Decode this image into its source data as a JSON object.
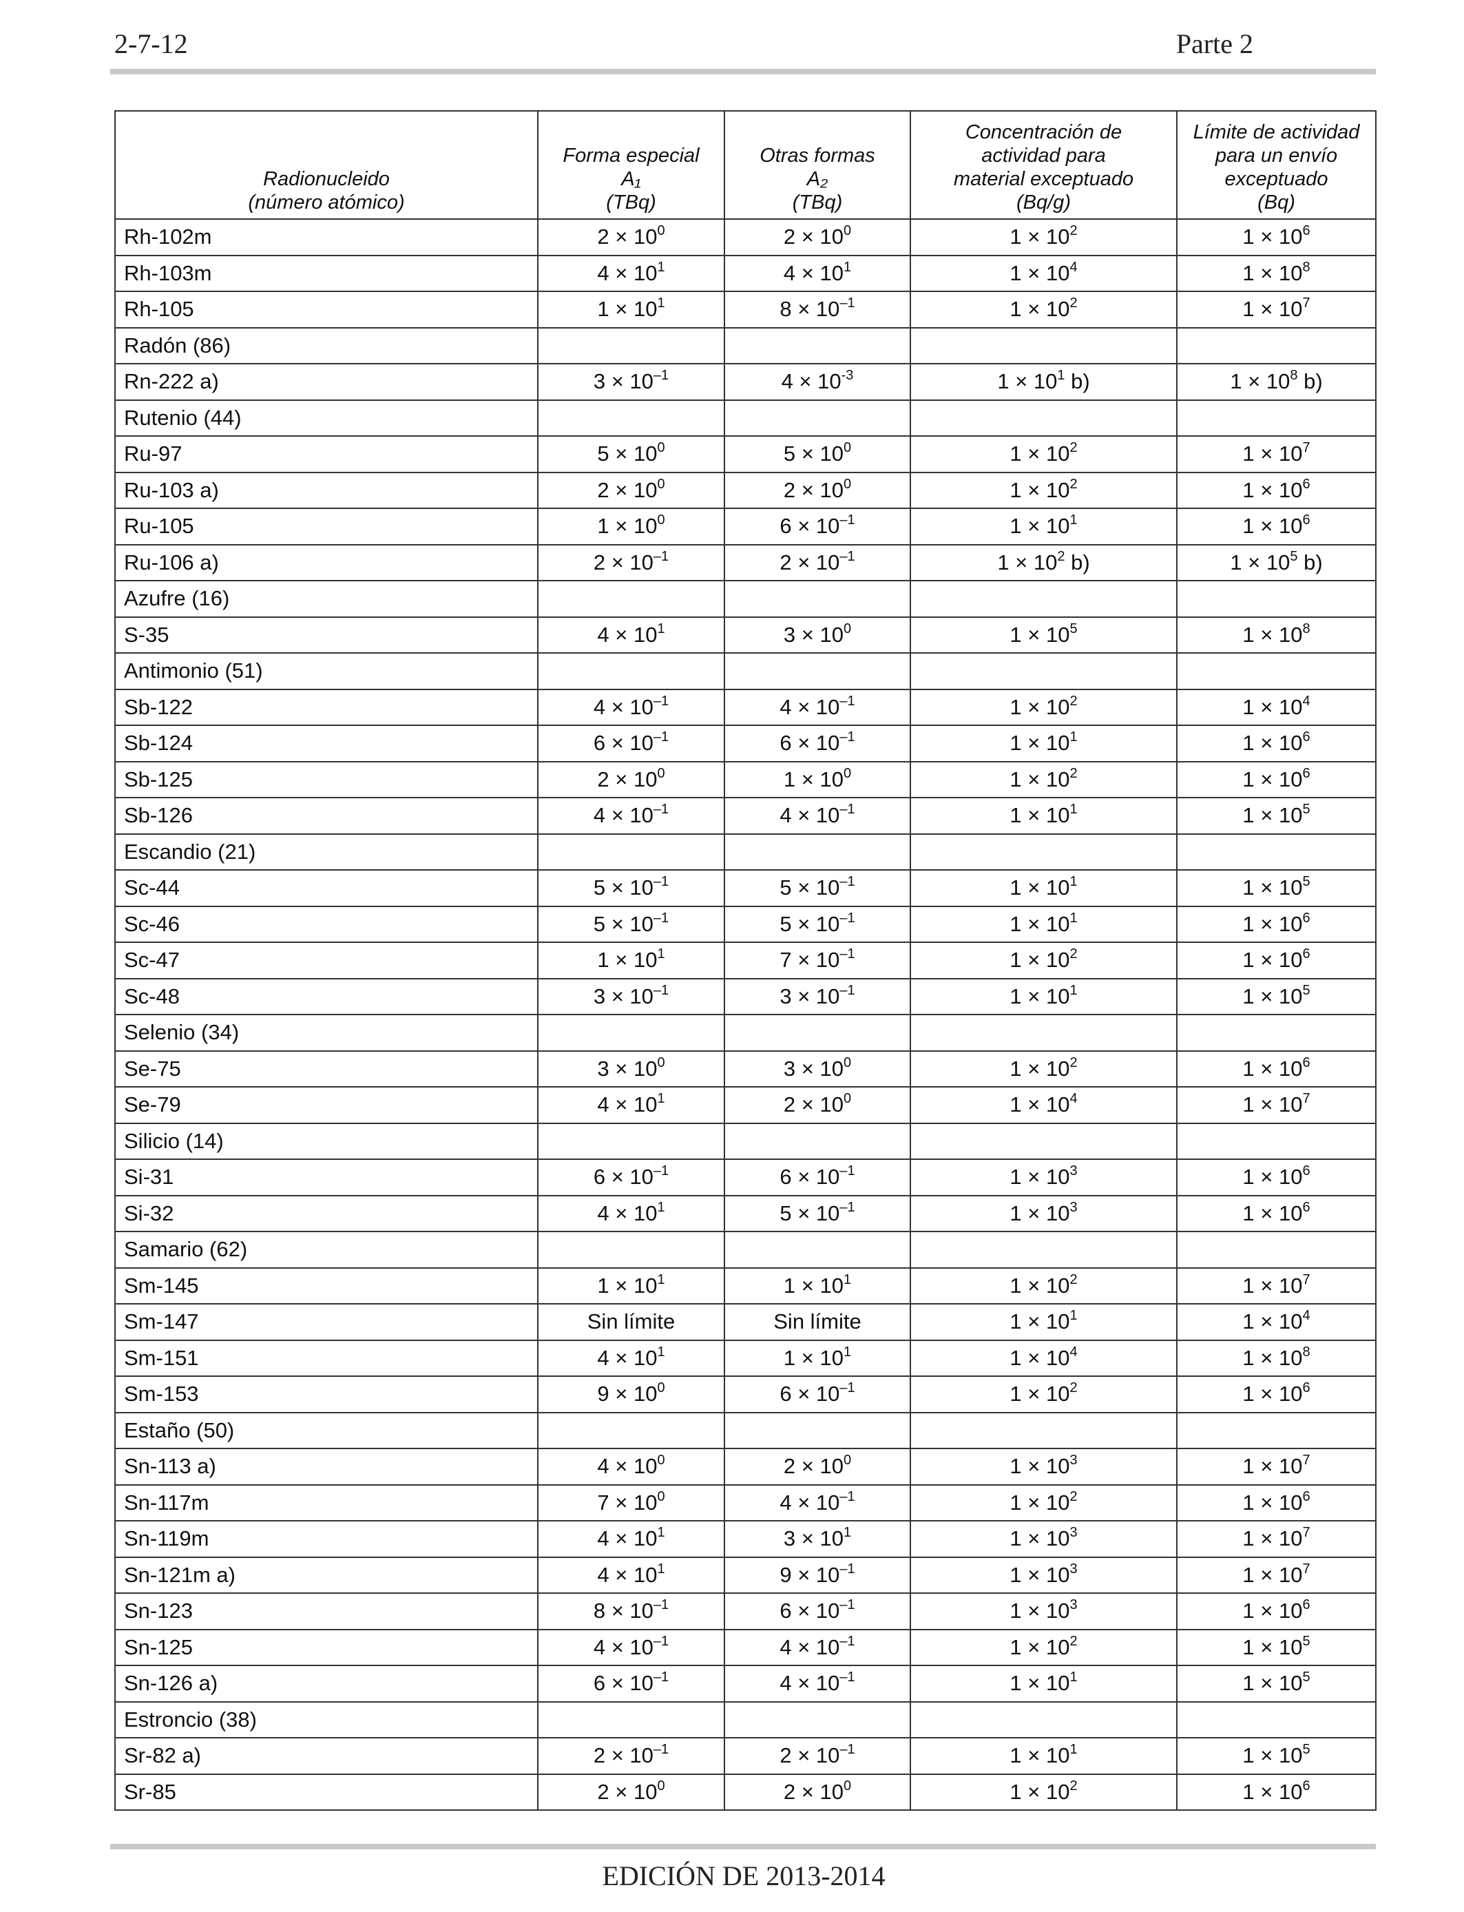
{
  "header": {
    "left": "2-7-12",
    "right": "Parte 2"
  },
  "footer": {
    "text": "EDICIÓN DE 2013-2014"
  },
  "table": {
    "columns": [
      {
        "lines": [
          "Radionucleido",
          "(número atómico)"
        ]
      },
      {
        "lines": [
          "Forma especial",
          "A₁",
          "(TBq)"
        ]
      },
      {
        "lines": [
          "Otras formas",
          "A₂",
          "(TBq)"
        ]
      },
      {
        "lines": [
          "Concentración de",
          "actividad para",
          "material exceptuado",
          "(Bq/g)"
        ]
      },
      {
        "lines": [
          "Límite de actividad",
          "para un envío",
          "exceptuado",
          "(Bq)"
        ]
      }
    ],
    "rows": [
      [
        "Rh-102m",
        "2 × 10^0",
        "2 × 10^0",
        "1 × 10^2",
        "1 × 10^6"
      ],
      [
        "Rh-103m",
        "4 × 10^1",
        "4 × 10^1",
        "1 × 10^4",
        "1 × 10^8"
      ],
      [
        "Rh-105",
        "1 × 10^1",
        "8 × 10^–1",
        "1 × 10^2",
        "1 × 10^7"
      ],
      [
        "Radón (86)",
        "",
        "",
        "",
        ""
      ],
      [
        "Rn-222 a)",
        "3 × 10^–1",
        "4 × 10^-3",
        "1 × 10^1 b)",
        "1 × 10^8 b)"
      ],
      [
        "Rutenio (44)",
        "",
        "",
        "",
        ""
      ],
      [
        "Ru-97",
        "5 × 10^0",
        "5 × 10^0",
        "1 × 10^2",
        "1 × 10^7"
      ],
      [
        "Ru-103 a)",
        "2 × 10^0",
        "2 × 10^0",
        "1 × 10^2",
        "1 × 10^6"
      ],
      [
        "Ru-105",
        "1 × 10^0",
        "6 × 10^–1",
        "1 × 10^1",
        "1 × 10^6"
      ],
      [
        "Ru-106 a)",
        "2 × 10^–1",
        "2 × 10^–1",
        "1 × 10^2 b)",
        "1 × 10^5 b)"
      ],
      [
        "Azufre (16)",
        "",
        "",
        "",
        ""
      ],
      [
        "S-35",
        "4 × 10^1",
        "3 × 10^0",
        "1 × 10^5",
        "1 × 10^8"
      ],
      [
        "Antimonio (51)",
        "",
        "",
        "",
        ""
      ],
      [
        "Sb-122",
        "4 × 10^–1",
        "4 × 10^–1",
        "1 × 10^2",
        "1 × 10^4"
      ],
      [
        "Sb-124",
        "6 × 10^–1",
        "6 × 10^–1",
        "1 × 10^1",
        "1 × 10^6"
      ],
      [
        "Sb-125",
        "2 × 10^0",
        "1 × 10^0",
        "1 × 10^2",
        "1 × 10^6"
      ],
      [
        "Sb-126",
        "4 × 10^–1",
        "4 × 10^–1",
        "1 × 10^1",
        "1 × 10^5"
      ],
      [
        "Escandio (21)",
        "",
        "",
        "",
        ""
      ],
      [
        "Sc-44",
        "5 × 10^–1",
        "5 × 10^–1",
        "1 × 10^1",
        "1 × 10^5"
      ],
      [
        "Sc-46",
        "5 × 10^–1",
        "5 × 10^–1",
        "1 × 10^1",
        "1 × 10^6"
      ],
      [
        "Sc-47",
        "1 × 10^1",
        "7 × 10^–1",
        "1 × 10^2",
        "1 × 10^6"
      ],
      [
        "Sc-48",
        "3 × 10^–1",
        "3 × 10^–1",
        "1 × 10^1",
        "1 × 10^5"
      ],
      [
        "Selenio (34)",
        "",
        "",
        "",
        ""
      ],
      [
        "Se-75",
        "3 × 10^0",
        "3 × 10^0",
        "1 × 10^2",
        "1 × 10^6"
      ],
      [
        "Se-79",
        "4 × 10^1",
        "2 × 10^0",
        "1 × 10^4",
        "1 × 10^7"
      ],
      [
        "Silicio (14)",
        "",
        "",
        "",
        ""
      ],
      [
        "Si-31",
        "6 × 10^–1",
        "6 × 10^–1",
        "1 × 10^3",
        "1 × 10^6"
      ],
      [
        "Si-32",
        "4 × 10^1",
        "5 × 10^–1",
        "1 × 10^3",
        "1 × 10^6"
      ],
      [
        "Samario (62)",
        "",
        "",
        "",
        ""
      ],
      [
        "Sm-145",
        "1 × 10^1",
        "1 × 10^1",
        "1 × 10^2",
        "1 × 10^7"
      ],
      [
        "Sm-147",
        "Sin límite",
        "Sin límite",
        "1 × 10^1",
        "1 × 10^4"
      ],
      [
        "Sm-151",
        "4 × 10^1",
        "1 × 10^1",
        "1 × 10^4",
        "1 × 10^8"
      ],
      [
        "Sm-153",
        "9 × 10^0",
        "6 × 10^–1",
        "1 × 10^2",
        "1 × 10^6"
      ],
      [
        "Estaño (50)",
        "",
        "",
        "",
        ""
      ],
      [
        "Sn-113 a)",
        "4 × 10^0",
        "2 × 10^0",
        "1 × 10^3",
        "1 × 10^7"
      ],
      [
        "Sn-117m",
        "7 × 10^0",
        "4 × 10^–1",
        "1 × 10^2",
        "1 × 10^6"
      ],
      [
        "Sn-119m",
        "4 × 10^1",
        "3 × 10^1",
        "1 × 10^3",
        "1 × 10^7"
      ],
      [
        "Sn-121m a)",
        "4 × 10^1",
        "9 × 10^–1",
        "1 × 10^3",
        "1 × 10^7"
      ],
      [
        "Sn-123",
        "8 × 10^–1",
        "6 × 10^–1",
        "1 × 10^3",
        "1 × 10^6"
      ],
      [
        "Sn-125",
        "4 × 10^–1",
        "4 × 10^–1",
        "1 × 10^2",
        "1 × 10^5"
      ],
      [
        "Sn-126 a)",
        "6 × 10^–1",
        "4 × 10^–1",
        "1 × 10^1",
        "1 × 10^5"
      ],
      [
        "Estroncio (38)",
        "",
        "",
        "",
        ""
      ],
      [
        "Sr-82 a)",
        "2 × 10^–1",
        "2 × 10^–1",
        "1 × 10^1",
        "1 × 10^5"
      ],
      [
        "Sr-85",
        "2 × 10^0",
        "2 × 10^0",
        "1 × 10^2",
        "1 × 10^6"
      ]
    ]
  }
}
